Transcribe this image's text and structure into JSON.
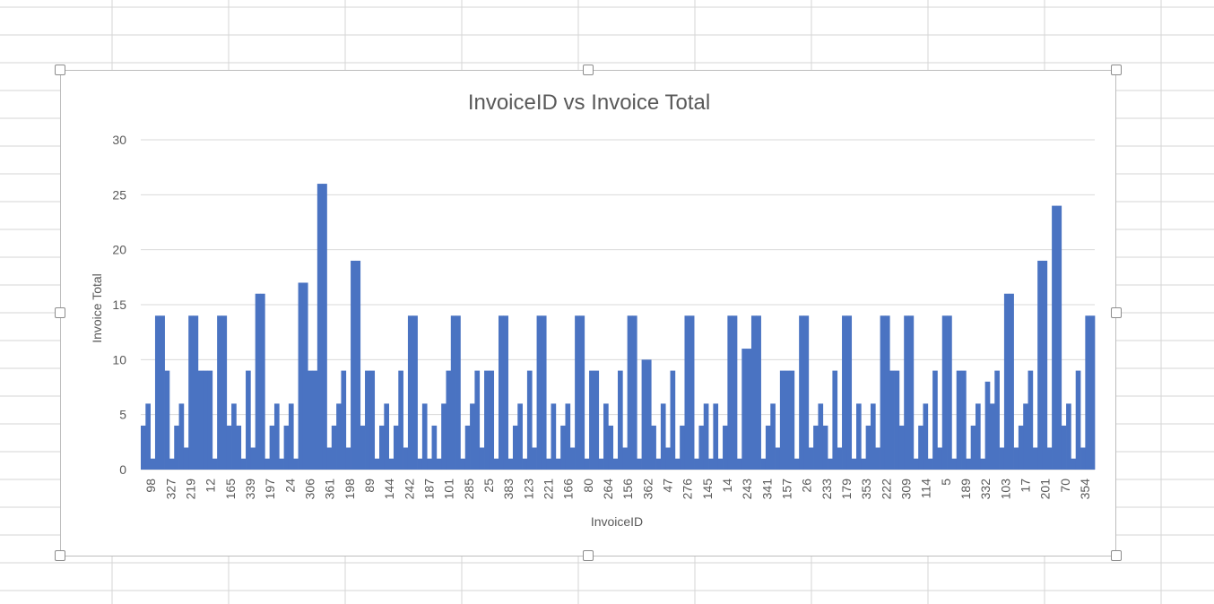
{
  "colors": {
    "bar": "#4a73c2",
    "gridline": "#d9d9d9",
    "text": "#595959",
    "sheet_grid": "#d6d6d6"
  },
  "chart_data": {
    "type": "bar",
    "title": "InvoiceID vs Invoice Total",
    "xlabel": "InvoiceID",
    "ylabel": "Invoice Total",
    "ylim": [
      0,
      30
    ],
    "yticks": [
      0,
      5,
      10,
      15,
      20,
      25,
      30
    ],
    "grid": true,
    "legend": "none",
    "x_tick_labels": [
      "98",
      "327",
      "219",
      "12",
      "165",
      "339",
      "197",
      "24",
      "306",
      "361",
      "198",
      "89",
      "144",
      "242",
      "187",
      "101",
      "285",
      "25",
      "383",
      "123",
      "221",
      "166",
      "80",
      "264",
      "156",
      "362",
      "47",
      "276",
      "145",
      "14",
      "243",
      "341",
      "157",
      "26",
      "233",
      "179",
      "353",
      "222",
      "309",
      "114",
      "5",
      "189",
      "332",
      "103",
      "17",
      "201",
      "70",
      "354"
    ],
    "values": [
      4,
      6,
      1,
      14,
      14,
      9,
      1,
      4,
      6,
      2,
      14,
      14,
      9,
      9,
      9,
      1,
      14,
      14,
      4,
      6,
      4,
      1,
      9,
      2,
      16,
      16,
      1,
      4,
      6,
      1,
      4,
      6,
      1,
      17,
      17,
      9,
      9,
      26,
      26,
      2,
      4,
      6,
      9,
      2,
      19,
      19,
      4,
      9,
      9,
      1,
      4,
      6,
      1,
      4,
      9,
      2,
      14,
      14,
      1,
      6,
      1,
      4,
      1,
      6,
      9,
      14,
      14,
      1,
      4,
      6,
      9,
      2,
      9,
      9,
      1,
      14,
      14,
      1,
      4,
      6,
      1,
      9,
      2,
      14,
      14,
      1,
      6,
      1,
      4,
      6,
      2,
      14,
      14,
      1,
      9,
      9,
      1,
      6,
      4,
      1,
      9,
      2,
      14,
      14,
      1,
      10,
      10,
      4,
      1,
      6,
      2,
      9,
      1,
      4,
      14,
      14,
      1,
      4,
      6,
      1,
      6,
      1,
      4,
      14,
      14,
      1,
      11,
      11,
      14,
      14,
      1,
      4,
      6,
      2,
      9,
      9,
      9,
      1,
      14,
      14,
      2,
      4,
      6,
      4,
      1,
      9,
      2,
      14,
      14,
      1,
      6,
      1,
      4,
      6,
      2,
      14,
      14,
      9,
      9,
      4,
      14,
      14,
      1,
      4,
      6,
      1,
      9,
      2,
      14,
      14,
      1,
      9,
      9,
      1,
      4,
      6,
      1,
      8,
      6,
      9,
      2,
      16,
      16,
      2,
      4,
      6,
      9,
      2,
      19,
      19,
      2,
      24,
      24,
      4,
      6,
      1,
      9,
      2,
      14,
      14
    ]
  }
}
